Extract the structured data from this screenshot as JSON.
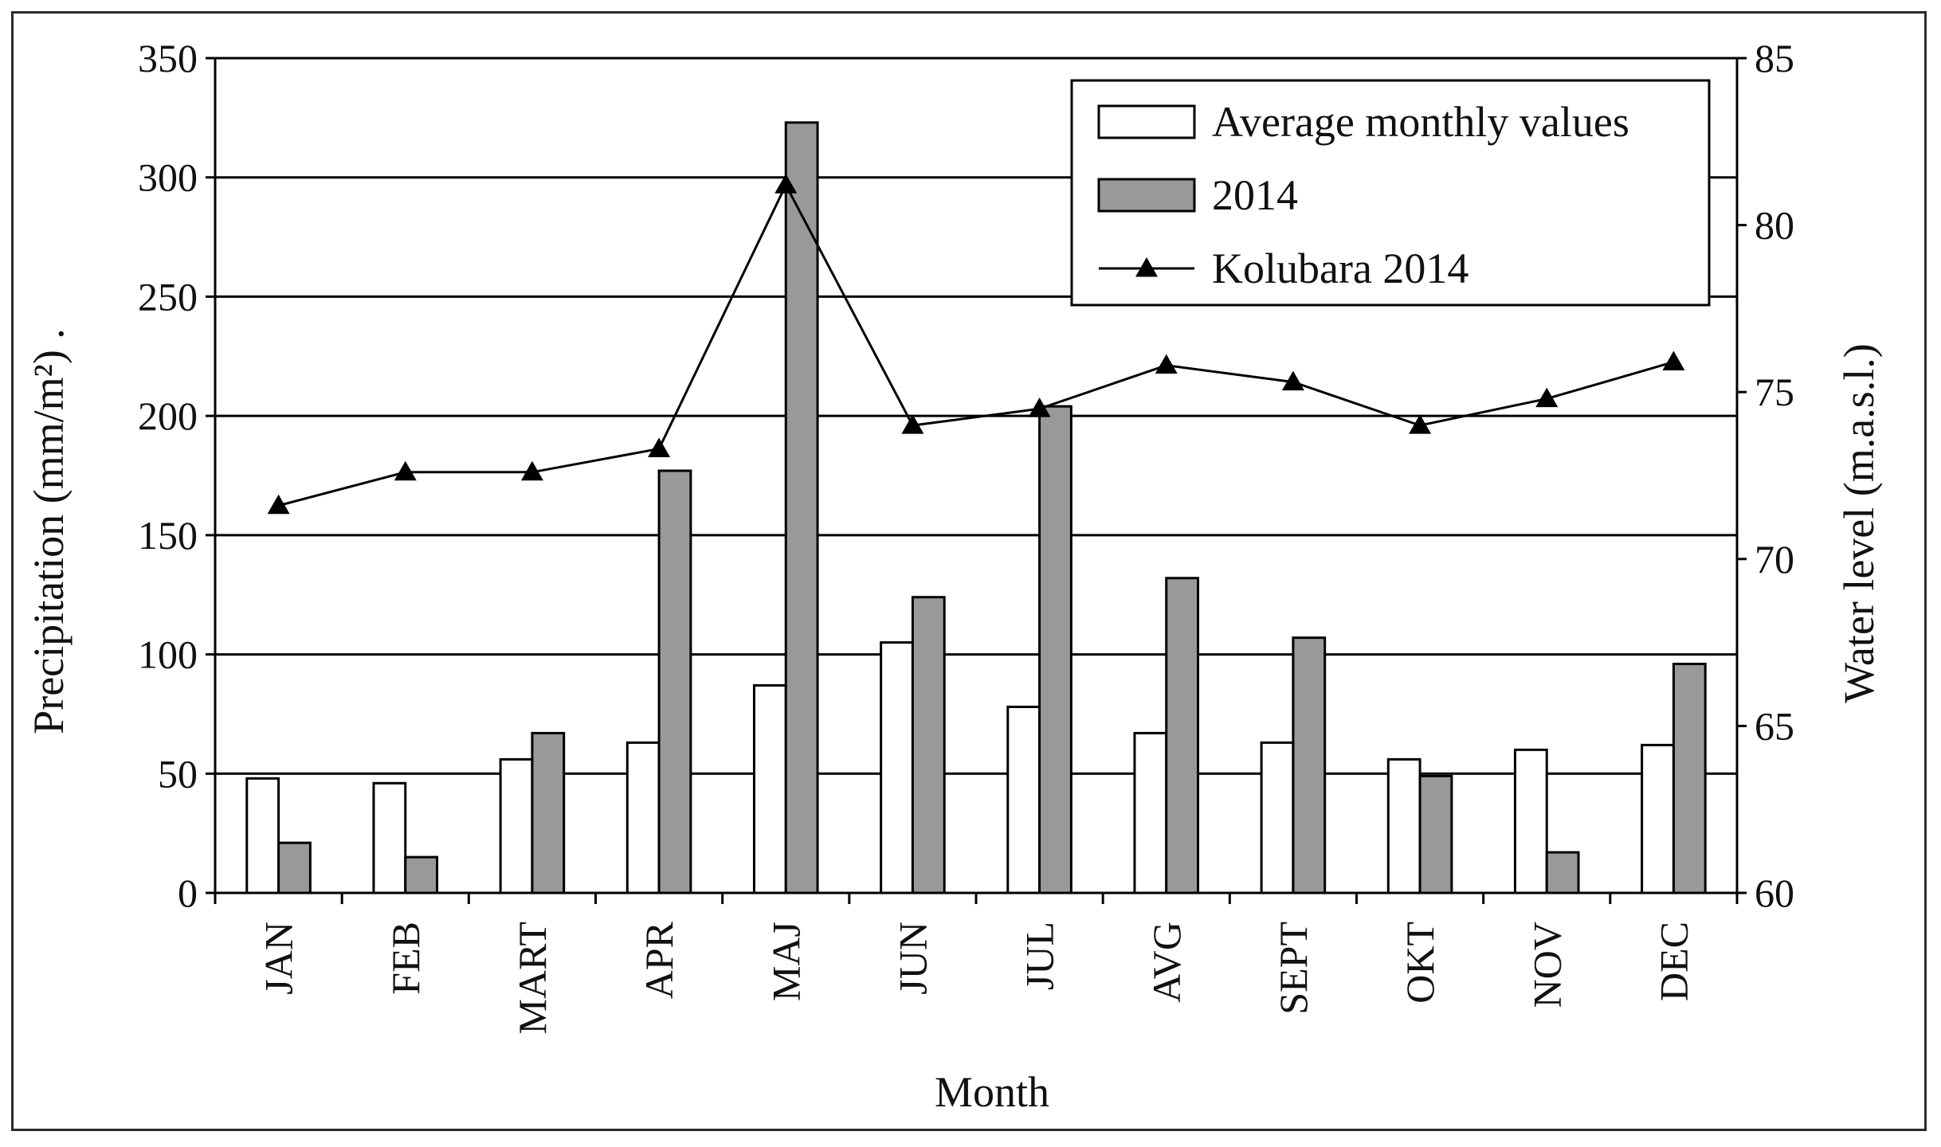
{
  "chart_data": {
    "type": "bar",
    "categories": [
      "JAN",
      "FEB",
      "MART",
      "APR",
      "MAJ",
      "JUN",
      "JUL",
      "AVG",
      "SEPT",
      "OKT",
      "NOV",
      "DEC"
    ],
    "series": [
      {
        "name": "Average monthly values",
        "kind": "bar",
        "axis": "left",
        "color": "#ffffff",
        "values": [
          48,
          46,
          56,
          63,
          87,
          105,
          78,
          67,
          63,
          56,
          60,
          62
        ]
      },
      {
        "name": "2014",
        "kind": "bar",
        "axis": "left",
        "color": "#999999",
        "values": [
          21,
          15,
          67,
          177,
          323,
          124,
          204,
          132,
          107,
          49,
          17,
          96
        ]
      },
      {
        "name": "Kolubara 2014",
        "kind": "line",
        "axis": "right",
        "color": "#000000",
        "marker": "triangle",
        "values": [
          71.6,
          72.6,
          72.6,
          73.3,
          81.2,
          74.0,
          74.5,
          75.8,
          75.3,
          74.0,
          74.8,
          75.9
        ]
      }
    ],
    "xlabel": "Month",
    "ylabel": "Precipitation (mm/m²) .",
    "y2label": "Water level (m.a.s.l.)",
    "ylim": [
      0,
      350
    ],
    "yticks": [
      0,
      50,
      100,
      150,
      200,
      250,
      300,
      350
    ],
    "y2lim": [
      60,
      85
    ],
    "y2ticks": [
      60,
      65,
      70,
      75,
      80,
      85
    ],
    "grid": true,
    "legend_position": "top-right"
  }
}
